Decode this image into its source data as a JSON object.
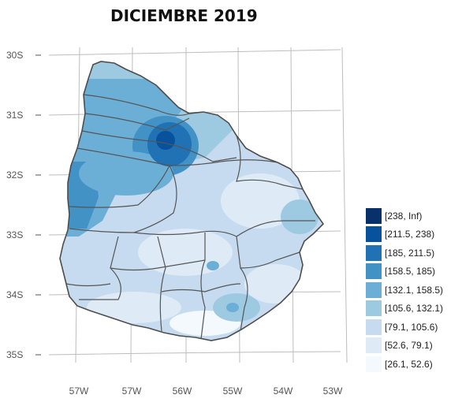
{
  "title": "DICIEMBRE 2019",
  "axes": {
    "y_ticks": [
      "30S",
      "31S",
      "32S",
      "33S",
      "34S",
      "35S"
    ],
    "x_ticks": [
      "57W",
      "57W",
      "56W",
      "55W",
      "54W",
      "53W"
    ]
  },
  "legend": {
    "items": [
      {
        "label": "[238, Inf)",
        "color": "#08306b"
      },
      {
        "label": "[211.5, 238)",
        "color": "#08519c"
      },
      {
        "label": "[185, 211.5)",
        "color": "#2171b5"
      },
      {
        "label": "[158.5, 185)",
        "color": "#4292c6"
      },
      {
        "label": "[132.1, 158.5)",
        "color": "#6baed6"
      },
      {
        "label": "[105.6, 132.1)",
        "color": "#9ecae1"
      },
      {
        "label": "[79.1, 105.6)",
        "color": "#c6dbef"
      },
      {
        "label": "[52.6, 79.1)",
        "color": "#deebf7"
      },
      {
        "label": "[26.1, 52.6)",
        "color": "#f4f9fe"
      }
    ]
  }
}
